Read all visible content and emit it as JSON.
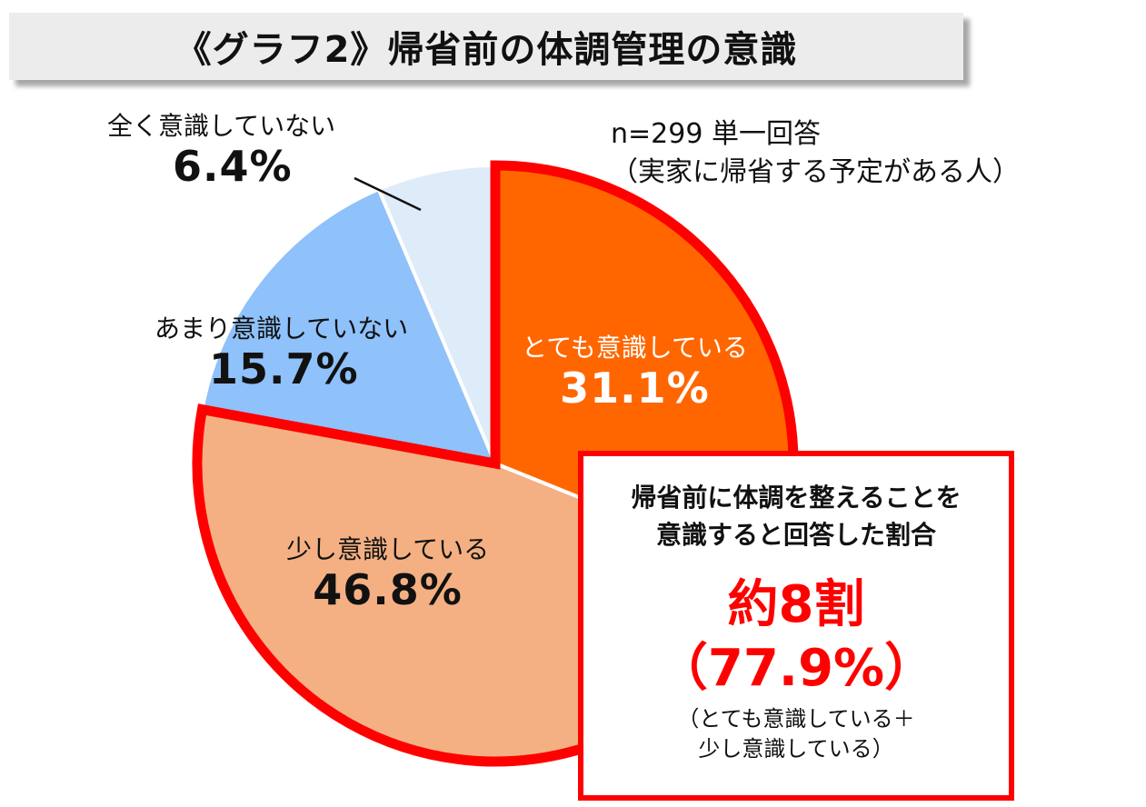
{
  "title": "《グラフ2》帰省前の体調管理の意識",
  "note": {
    "line1": "n=299  単一回答",
    "line2": "（実家に帰省する予定がある人）"
  },
  "chart_data": {
    "type": "pie",
    "title": "《グラフ2》帰省前の体調管理の意識",
    "slices": [
      {
        "label": "とても意識している",
        "value": 31.1,
        "value_text": "31.1%",
        "color": "#ff6600",
        "label_color": "#ffffff"
      },
      {
        "label": "少し意識している",
        "value": 46.8,
        "value_text": "46.8%",
        "color": "#f4b083",
        "label_color": "#111111"
      },
      {
        "label": "あまり意識していない",
        "value": 15.7,
        "value_text": "15.7%",
        "color": "#8fc1fa",
        "label_color": "#111111"
      },
      {
        "label": "全く意識していない",
        "value": 6.4,
        "value_text": "6.4%",
        "color": "#deebf9",
        "label_color": "#111111"
      }
    ],
    "highlight_color": "#ff0000"
  },
  "callout": {
    "line1": "帰省前に体調を整えることを",
    "line2": "意識すると回答した割合",
    "big1": "約8割",
    "big2": "（77.9%）",
    "sub1": "（とても意識している＋",
    "sub2": "少し意識している）"
  }
}
